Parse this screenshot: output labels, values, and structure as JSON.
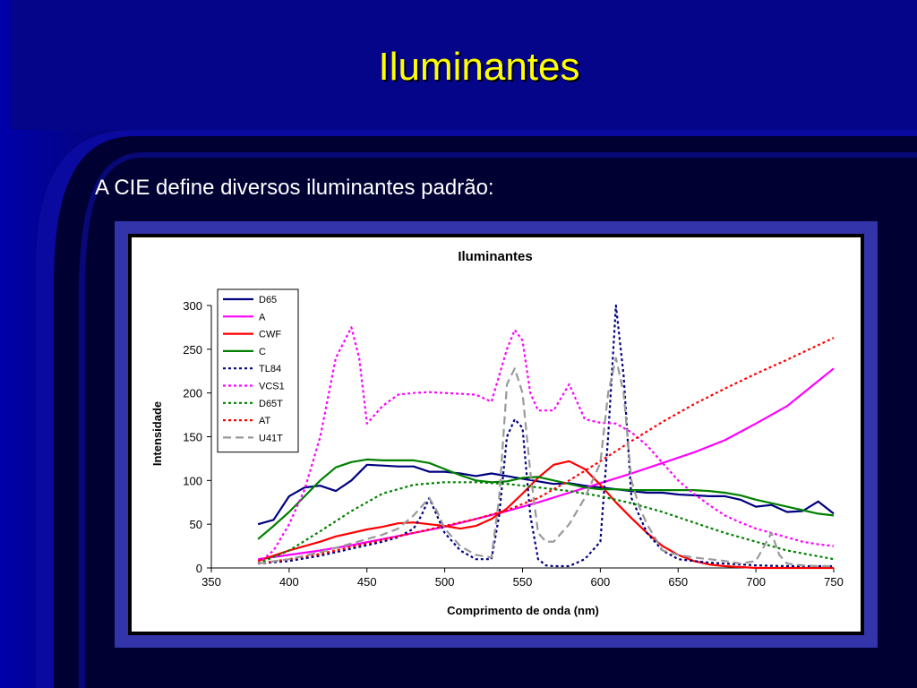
{
  "slide": {
    "title": "Iluminantes",
    "text": "A CIE define diversos iluminantes padrão:"
  },
  "colors": {
    "background": "#000033",
    "band": "#0a0a8c",
    "title": "#ffff00",
    "frame": "#3333aa"
  },
  "chart_data": {
    "type": "line",
    "title": "Iluminantes",
    "xlabel": "Comprimento de onda (nm)",
    "ylabel": "Intensidade",
    "xlim": [
      350,
      750
    ],
    "ylim": [
      0,
      300
    ],
    "xticks": [
      350,
      400,
      450,
      500,
      550,
      600,
      650,
      700,
      750
    ],
    "yticks": [
      0,
      50,
      100,
      150,
      200,
      250,
      300
    ],
    "grid": false,
    "legend_position": "top-left",
    "series": [
      {
        "name": "D65",
        "color": "#000080",
        "style": "solid",
        "x": [
          380,
          390,
          400,
          410,
          420,
          430,
          440,
          450,
          460,
          470,
          480,
          490,
          500,
          510,
          520,
          530,
          540,
          550,
          560,
          570,
          580,
          590,
          600,
          610,
          620,
          630,
          640,
          650,
          660,
          670,
          680,
          690,
          700,
          710,
          720,
          730,
          740,
          750
        ],
        "y": [
          50,
          55,
          82,
          92,
          94,
          88,
          100,
          118,
          117,
          116,
          116,
          110,
          110,
          108,
          105,
          108,
          105,
          102,
          99,
          96,
          97,
          94,
          92,
          90,
          88,
          86,
          86,
          84,
          83,
          82,
          82,
          78,
          70,
          72,
          64,
          65,
          76,
          62
        ]
      },
      {
        "name": "A",
        "color": "#ff00ff",
        "style": "solid",
        "x": [
          380,
          400,
          420,
          440,
          460,
          480,
          500,
          520,
          540,
          560,
          580,
          600,
          620,
          640,
          660,
          680,
          700,
          720,
          750
        ],
        "y": [
          10,
          15,
          20,
          26,
          33,
          40,
          47,
          56,
          65,
          75,
          86,
          97,
          108,
          120,
          132,
          146,
          165,
          185,
          228
        ]
      },
      {
        "name": "CWF",
        "color": "#ff0000",
        "style": "solid",
        "x": [
          380,
          390,
          400,
          410,
          420,
          430,
          440,
          450,
          460,
          470,
          480,
          490,
          500,
          510,
          520,
          530,
          540,
          550,
          560,
          570,
          580,
          590,
          600,
          610,
          620,
          630,
          640,
          650,
          660,
          670,
          680,
          690,
          700,
          710,
          720,
          730,
          740,
          750
        ],
        "y": [
          8,
          14,
          20,
          25,
          30,
          36,
          40,
          44,
          47,
          51,
          52,
          50,
          48,
          45,
          48,
          56,
          68,
          85,
          103,
          118,
          122,
          113,
          95,
          75,
          57,
          40,
          25,
          15,
          8,
          4,
          2,
          1,
          0,
          0,
          0,
          0,
          0,
          0
        ]
      },
      {
        "name": "C",
        "color": "#008000",
        "style": "solid",
        "x": [
          380,
          390,
          400,
          410,
          420,
          430,
          440,
          450,
          460,
          470,
          480,
          490,
          500,
          510,
          520,
          530,
          540,
          550,
          560,
          570,
          580,
          590,
          600,
          610,
          620,
          630,
          640,
          650,
          660,
          670,
          680,
          690,
          700,
          710,
          720,
          730,
          740,
          750
        ],
        "y": [
          33,
          48,
          64,
          82,
          100,
          115,
          121,
          124,
          123,
          123,
          123,
          120,
          113,
          106,
          100,
          98,
          99,
          103,
          104,
          100,
          96,
          92,
          90,
          90,
          89,
          89,
          89,
          89,
          89,
          88,
          86,
          83,
          78,
          74,
          70,
          66,
          62,
          60
        ]
      },
      {
        "name": "TL84",
        "color": "#000080",
        "style": "dot",
        "x": [
          380,
          400,
          420,
          440,
          460,
          470,
          480,
          485,
          490,
          495,
          500,
          510,
          520,
          530,
          535,
          540,
          545,
          550,
          555,
          560,
          565,
          570,
          580,
          590,
          600,
          605,
          610,
          615,
          620,
          625,
          630,
          640,
          650,
          660,
          670,
          680,
          690,
          700,
          720,
          750
        ],
        "y": [
          5,
          8,
          14,
          22,
          30,
          35,
          45,
          60,
          80,
          60,
          40,
          20,
          10,
          10,
          60,
          150,
          170,
          160,
          60,
          10,
          3,
          2,
          2,
          10,
          30,
          150,
          300,
          220,
          80,
          60,
          40,
          20,
          10,
          8,
          6,
          5,
          4,
          3,
          2,
          2
        ]
      },
      {
        "name": "VCS1",
        "color": "#ff00ff",
        "style": "dot",
        "x": [
          380,
          390,
          400,
          410,
          420,
          430,
          440,
          445,
          450,
          460,
          470,
          480,
          490,
          500,
          510,
          520,
          530,
          540,
          545,
          550,
          555,
          560,
          570,
          580,
          590,
          600,
          610,
          620,
          630,
          640,
          650,
          660,
          670,
          680,
          690,
          700,
          710,
          720,
          730,
          740,
          750
        ],
        "y": [
          5,
          20,
          50,
          90,
          150,
          240,
          275,
          240,
          165,
          185,
          198,
          200,
          201,
          200,
          199,
          198,
          190,
          250,
          272,
          260,
          200,
          180,
          180,
          210,
          170,
          166,
          165,
          155,
          140,
          120,
          100,
          85,
          72,
          60,
          52,
          45,
          40,
          35,
          30,
          27,
          25
        ]
      },
      {
        "name": "D65T",
        "color": "#008000",
        "style": "dot",
        "x": [
          380,
          400,
          420,
          440,
          460,
          480,
          500,
          520,
          540,
          560,
          580,
          600,
          620,
          640,
          660,
          680,
          700,
          720,
          750
        ],
        "y": [
          5,
          20,
          42,
          65,
          85,
          95,
          98,
          98,
          96,
          92,
          88,
          82,
          74,
          64,
          52,
          40,
          30,
          20,
          10
        ]
      },
      {
        "name": "AT",
        "color": "#ff0000",
        "style": "dot",
        "x": [
          380,
          400,
          420,
          440,
          460,
          480,
          500,
          520,
          540,
          560,
          580,
          600,
          620,
          640,
          660,
          680,
          700,
          720,
          750
        ],
        "y": [
          5,
          10,
          16,
          24,
          32,
          40,
          48,
          56,
          66,
          80,
          100,
          122,
          145,
          167,
          187,
          205,
          222,
          238,
          263
        ]
      },
      {
        "name": "U41T",
        "color": "#999999",
        "style": "dash",
        "x": [
          380,
          400,
          420,
          440,
          460,
          470,
          480,
          485,
          490,
          495,
          500,
          510,
          520,
          530,
          535,
          540,
          545,
          550,
          555,
          560,
          565,
          570,
          580,
          590,
          600,
          605,
          610,
          615,
          620,
          625,
          630,
          640,
          650,
          660,
          670,
          680,
          690,
          700,
          710,
          715,
          720,
          730,
          740,
          750
        ],
        "y": [
          5,
          10,
          18,
          28,
          38,
          45,
          60,
          70,
          80,
          65,
          45,
          25,
          15,
          12,
          80,
          210,
          228,
          200,
          110,
          40,
          30,
          30,
          50,
          80,
          120,
          200,
          240,
          200,
          100,
          70,
          50,
          20,
          15,
          12,
          10,
          8,
          5,
          8,
          40,
          15,
          5,
          3,
          2,
          2
        ]
      }
    ]
  }
}
